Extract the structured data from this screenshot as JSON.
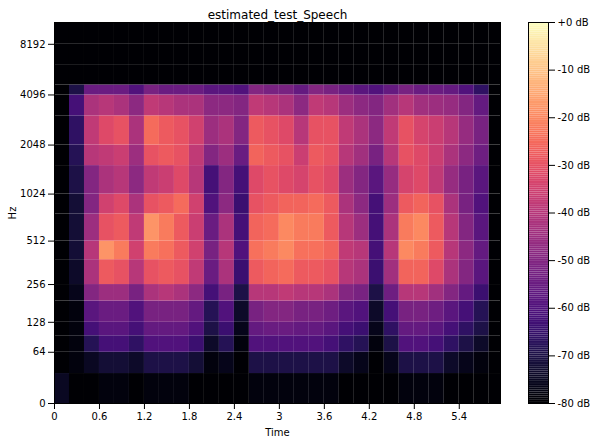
{
  "chart_data": {
    "type": "heatmap",
    "title": "estimated_test_Speech",
    "xlabel": "Time",
    "ylabel": "Hz",
    "xlim": [
      0,
      5.95
    ],
    "xticks": [
      0,
      0.6,
      1.2,
      1.8,
      2.4,
      3,
      3.6,
      4.2,
      4.8,
      5.4
    ],
    "ylim": [
      0,
      11025
    ],
    "yticks": [
      0,
      64,
      128,
      256,
      512,
      1024,
      2048,
      4096,
      8192
    ],
    "log": "y",
    "color": "magma",
    "time_edges": [
      0,
      0.2,
      0.4,
      0.6,
      0.8,
      1.0,
      1.2,
      1.4,
      1.6,
      1.8,
      2.0,
      2.2,
      2.4,
      2.6,
      2.8,
      3.0,
      3.2,
      3.4,
      3.6,
      3.8,
      4.0,
      4.2,
      4.4,
      4.6,
      4.8,
      5.0,
      5.2,
      5.4,
      5.6,
      5.8,
      5.95
    ],
    "freq_edges": [
      0,
      32,
      64,
      96,
      128,
      192,
      256,
      384,
      512,
      768,
      1024,
      1536,
      2048,
      3072,
      4096,
      4700,
      6144,
      8192,
      11025
    ],
    "z": [
      [
        -75,
        -80,
        -80,
        -80,
        -80,
        -80,
        -80,
        -80,
        -80,
        -80,
        -80,
        -80,
        -80,
        -80,
        -80,
        -80,
        -80,
        -80
      ],
      [
        -80,
        -78,
        -78,
        -78,
        -78,
        -76,
        -74,
        -72,
        -72,
        -72,
        -70,
        -68,
        -66,
        -62,
        -70,
        -80,
        -80,
        -80
      ],
      [
        -80,
        -75,
        -68,
        -62,
        -58,
        -50,
        -42,
        -40,
        -45,
        -50,
        -50,
        -40,
        -38,
        -42,
        -55,
        -80,
        -80,
        -80
      ],
      [
        -78,
        -72,
        -62,
        -58,
        -55,
        -45,
        -28,
        -18,
        -30,
        -35,
        -42,
        -38,
        -32,
        -40,
        -55,
        -80,
        -80,
        -80
      ],
      [
        -78,
        -72,
        -62,
        -58,
        -55,
        -45,
        -30,
        -22,
        -28,
        -32,
        -40,
        -36,
        -30,
        -42,
        -55,
        -80,
        -80,
        -80
      ],
      [
        -80,
        -74,
        -66,
        -62,
        -60,
        -52,
        -40,
        -35,
        -38,
        -42,
        -48,
        -45,
        -42,
        -48,
        -60,
        -80,
        -80,
        -80
      ],
      [
        -78,
        -70,
        -60,
        -56,
        -52,
        -42,
        -30,
        -22,
        -18,
        -30,
        -38,
        -30,
        -25,
        -38,
        -52,
        -80,
        -80,
        -80
      ],
      [
        -78,
        -70,
        -60,
        -56,
        -52,
        -40,
        -28,
        -24,
        -22,
        -28,
        -36,
        -28,
        -28,
        -40,
        -55,
        -80,
        -80,
        -80
      ],
      [
        -78,
        -70,
        -60,
        -56,
        -52,
        -42,
        -30,
        -28,
        -28,
        -25,
        -32,
        -30,
        -30,
        -42,
        -55,
        -80,
        -80,
        -80
      ],
      [
        -80,
        -72,
        -64,
        -60,
        -56,
        -48,
        -38,
        -35,
        -36,
        -35,
        -40,
        -38,
        -35,
        -42,
        -55,
        -80,
        -80,
        -80
      ],
      [
        -80,
        -78,
        -74,
        -70,
        -68,
        -62,
        -55,
        -52,
        -55,
        -60,
        -62,
        -50,
        -45,
        -48,
        -58,
        -80,
        -80,
        -80
      ],
      [
        -80,
        -76,
        -68,
        -64,
        -60,
        -52,
        -42,
        -40,
        -42,
        -48,
        -50,
        -45,
        -42,
        -48,
        -58,
        -80,
        -80,
        -80
      ],
      [
        -80,
        -80,
        -78,
        -76,
        -74,
        -70,
        -64,
        -60,
        -62,
        -64,
        -62,
        -55,
        -50,
        -50,
        -60,
        -80,
        -80,
        -80
      ],
      [
        -78,
        -70,
        -60,
        -56,
        -52,
        -40,
        -28,
        -24,
        -26,
        -30,
        -32,
        -26,
        -28,
        -38,
        -50,
        -80,
        -80,
        -80
      ],
      [
        -78,
        -70,
        -60,
        -55,
        -50,
        -40,
        -26,
        -22,
        -25,
        -28,
        -30,
        -28,
        -30,
        -40,
        -52,
        -80,
        -80,
        -80
      ],
      [
        -78,
        -70,
        -60,
        -55,
        -50,
        -38,
        -25,
        -20,
        -20,
        -26,
        -32,
        -30,
        -32,
        -42,
        -52,
        -80,
        -80,
        -80
      ],
      [
        -78,
        -70,
        -60,
        -56,
        -52,
        -40,
        -28,
        -24,
        -22,
        -26,
        -34,
        -36,
        -40,
        -48,
        -56,
        -80,
        -80,
        -80
      ],
      [
        -78,
        -70,
        -60,
        -56,
        -52,
        -40,
        -28,
        -24,
        -22,
        -25,
        -30,
        -28,
        -30,
        -38,
        -50,
        -80,
        -80,
        -80
      ],
      [
        -78,
        -70,
        -62,
        -58,
        -54,
        -42,
        -30,
        -26,
        -28,
        -28,
        -32,
        -30,
        -30,
        -40,
        -52,
        -80,
        -80,
        -80
      ],
      [
        -80,
        -74,
        -66,
        -62,
        -58,
        -50,
        -40,
        -38,
        -40,
        -42,
        -45,
        -40,
        -38,
        -45,
        -55,
        -80,
        -80,
        -80
      ],
      [
        -80,
        -76,
        -68,
        -64,
        -60,
        -52,
        -42,
        -40,
        -45,
        -48,
        -50,
        -44,
        -42,
        -48,
        -58,
        -80,
        -80,
        -80
      ],
      [
        -80,
        -80,
        -78,
        -76,
        -74,
        -70,
        -64,
        -62,
        -62,
        -62,
        -58,
        -52,
        -48,
        -50,
        -60,
        -80,
        -80,
        -80
      ],
      [
        -80,
        -76,
        -70,
        -66,
        -62,
        -54,
        -44,
        -40,
        -42,
        -45,
        -46,
        -40,
        -38,
        -44,
        -56,
        -80,
        -80,
        -80
      ],
      [
        -78,
        -70,
        -60,
        -56,
        -52,
        -40,
        -26,
        -20,
        -22,
        -28,
        -34,
        -30,
        -30,
        -40,
        -52,
        -80,
        -80,
        -80
      ],
      [
        -78,
        -70,
        -60,
        -56,
        -52,
        -40,
        -26,
        -22,
        -20,
        -26,
        -32,
        -32,
        -34,
        -44,
        -55,
        -80,
        -80,
        -80
      ],
      [
        -78,
        -70,
        -62,
        -58,
        -54,
        -44,
        -32,
        -28,
        -28,
        -30,
        -38,
        -36,
        -36,
        -45,
        -55,
        -80,
        -80,
        -80
      ],
      [
        -80,
        -74,
        -66,
        -62,
        -58,
        -50,
        -42,
        -40,
        -40,
        -42,
        -46,
        -42,
        -40,
        -46,
        -56,
        -80,
        -80,
        -80
      ],
      [
        -80,
        -76,
        -70,
        -66,
        -62,
        -56,
        -50,
        -48,
        -50,
        -52,
        -52,
        -48,
        -46,
        -50,
        -60,
        -80,
        -80,
        -80
      ],
      [
        -80,
        -78,
        -74,
        -70,
        -68,
        -64,
        -58,
        -56,
        -58,
        -60,
        -58,
        -54,
        -52,
        -56,
        -66,
        -80,
        -80,
        -80
      ],
      [
        -80,
        -80,
        -80,
        -80,
        -80,
        -80,
        -80,
        -80,
        -80,
        -80,
        -80,
        -80,
        -80,
        -80,
        -80,
        -80,
        -80,
        -80
      ]
    ],
    "colorbar": {
      "range": [
        -80,
        0
      ],
      "ticks": [
        {
          "value": 0,
          "label": "+0 dB"
        },
        {
          "value": -10,
          "label": "-10 dB"
        },
        {
          "value": -20,
          "label": "-20 dB"
        },
        {
          "value": -30,
          "label": "-30 dB"
        },
        {
          "value": -40,
          "label": "-40 dB"
        },
        {
          "value": -50,
          "label": "-50 dB"
        },
        {
          "value": -60,
          "label": "-60 dB"
        },
        {
          "value": -70,
          "label": "-70 dB"
        },
        {
          "value": -80,
          "label": "-80 dB"
        }
      ]
    }
  }
}
